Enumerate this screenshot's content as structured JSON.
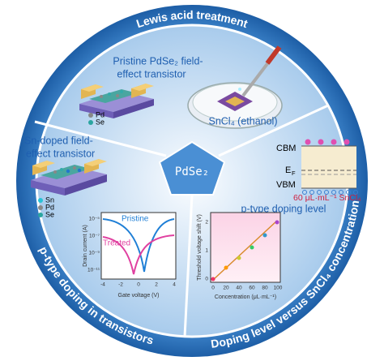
{
  "ring": {
    "top": "Lewis acid treatment",
    "left": "p-type doping in transistors",
    "right": "Doping level versus SnCl₄ concentration"
  },
  "center": "PdSe₂",
  "pristine": {
    "title_line1": "Pristine PdSe₂ field-",
    "title_line2": "effect transistor",
    "legend": [
      "Pd",
      "Se"
    ]
  },
  "solution": "SnCl₄ (ethanol)",
  "band": {
    "cbm": "CBM",
    "ef": {
      "letter": "E",
      "subscript": "F"
    },
    "vbm": "VBM",
    "dose": "60 μL·mL⁻¹ SnCl₄",
    "caption": "p-type doping level"
  },
  "doped": {
    "title_line1": "Sn-doped field-",
    "title_line2": "effect transistor",
    "legend": [
      "Sn",
      "Pd",
      "Se"
    ]
  },
  "transfer_plot": {
    "series": [
      "Pristine",
      "Treated"
    ],
    "x_label": "Gate voltage (V)",
    "y_label": "Drain current (A)",
    "xticks": [
      "-4",
      "-2",
      "0",
      "2",
      "4"
    ],
    "yticks": [
      "10⁻⁵",
      "10⁻⁷",
      "10⁻⁹",
      "10⁻¹¹"
    ]
  },
  "threshold_plot": {
    "x_label": "Concentration (μL·mL⁻¹)",
    "y_label": "Threshold voltage shift (V)",
    "xticks": [
      "0",
      "20",
      "40",
      "60",
      "80",
      "100"
    ],
    "yticks": [
      "0",
      "1",
      "2"
    ]
  }
}
